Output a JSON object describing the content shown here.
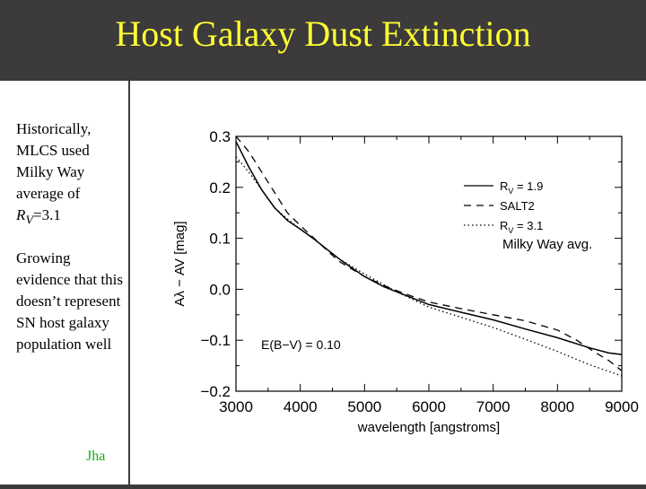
{
  "slide": {
    "title": "Host Galaxy Dust Extinction",
    "bullet1": "Historically, MLCS used Milky Way average of",
    "bullet1_rv_prefix": "R",
    "bullet1_rv_sub": "V",
    "bullet1_rv_value": "=3.1",
    "bullet2": "Growing evidence that this doesn’t represent SN host galaxy population well",
    "author": "Jha",
    "colors": {
      "background": "#3c3a3a",
      "title": "#ffff33",
      "author": "#11aa11"
    }
  },
  "chart_data": {
    "type": "line",
    "xlabel": "wavelength [angstroms]",
    "ylabel": "Aλ − AV [mag]",
    "xlim": [
      3000,
      9000
    ],
    "ylim": [
      -0.2,
      0.3
    ],
    "xticks": [
      3000,
      4000,
      5000,
      6000,
      7000,
      8000,
      9000
    ],
    "yticks": [
      -0.2,
      -0.1,
      0.0,
      0.1,
      0.2,
      0.3
    ],
    "ytick_labels": [
      "−0.2",
      "−0.1",
      "0.0",
      "0.1",
      "0.2",
      "0.3"
    ],
    "annotation": "E(B−V) = 0.10",
    "extra_label": "Milky Way avg.",
    "legend_placement": "right",
    "series": [
      {
        "name": "Rv = 1.9",
        "legend_main": "R",
        "legend_sub": "V",
        "legend_rest": " = 1.9",
        "style": "solid",
        "x": [
          3000,
          3200,
          3400,
          3600,
          3800,
          4000,
          4200,
          4400,
          4600,
          4800,
          5000,
          5300,
          5600,
          6000,
          6500,
          7000,
          7500,
          8000,
          8500,
          8800,
          9000
        ],
        "y": [
          0.29,
          0.24,
          0.195,
          0.16,
          0.135,
          0.118,
          0.1,
          0.08,
          0.06,
          0.042,
          0.025,
          0.005,
          -0.01,
          -0.03,
          -0.045,
          -0.06,
          -0.078,
          -0.095,
          -0.115,
          -0.125,
          -0.128
        ]
      },
      {
        "name": "SALT2",
        "legend_main": "SALT2",
        "legend_sub": "",
        "legend_rest": "",
        "style": "dashed",
        "x": [
          3000,
          3200,
          3400,
          3600,
          3800,
          4000,
          4300,
          4600,
          5000,
          5400,
          5700,
          6000,
          6500,
          7000,
          7500,
          8000,
          8300,
          8600,
          8800,
          9000
        ],
        "y": [
          0.3,
          0.27,
          0.23,
          0.19,
          0.15,
          0.125,
          0.09,
          0.055,
          0.025,
          0.002,
          -0.012,
          -0.025,
          -0.038,
          -0.05,
          -0.062,
          -0.08,
          -0.1,
          -0.125,
          -0.14,
          -0.16
        ]
      },
      {
        "name": "Rv = 3.1",
        "legend_main": "R",
        "legend_sub": "V",
        "legend_rest": " = 3.1",
        "style": "dotted",
        "x": [
          3000,
          3200,
          3400,
          3600,
          3800,
          4000,
          4300,
          4600,
          5000,
          5500,
          6000,
          6500,
          7000,
          7500,
          8000,
          8500,
          9000
        ],
        "y": [
          0.26,
          0.23,
          0.195,
          0.16,
          0.138,
          0.118,
          0.09,
          0.06,
          0.03,
          -0.005,
          -0.035,
          -0.055,
          -0.075,
          -0.098,
          -0.122,
          -0.148,
          -0.17
        ]
      }
    ]
  }
}
